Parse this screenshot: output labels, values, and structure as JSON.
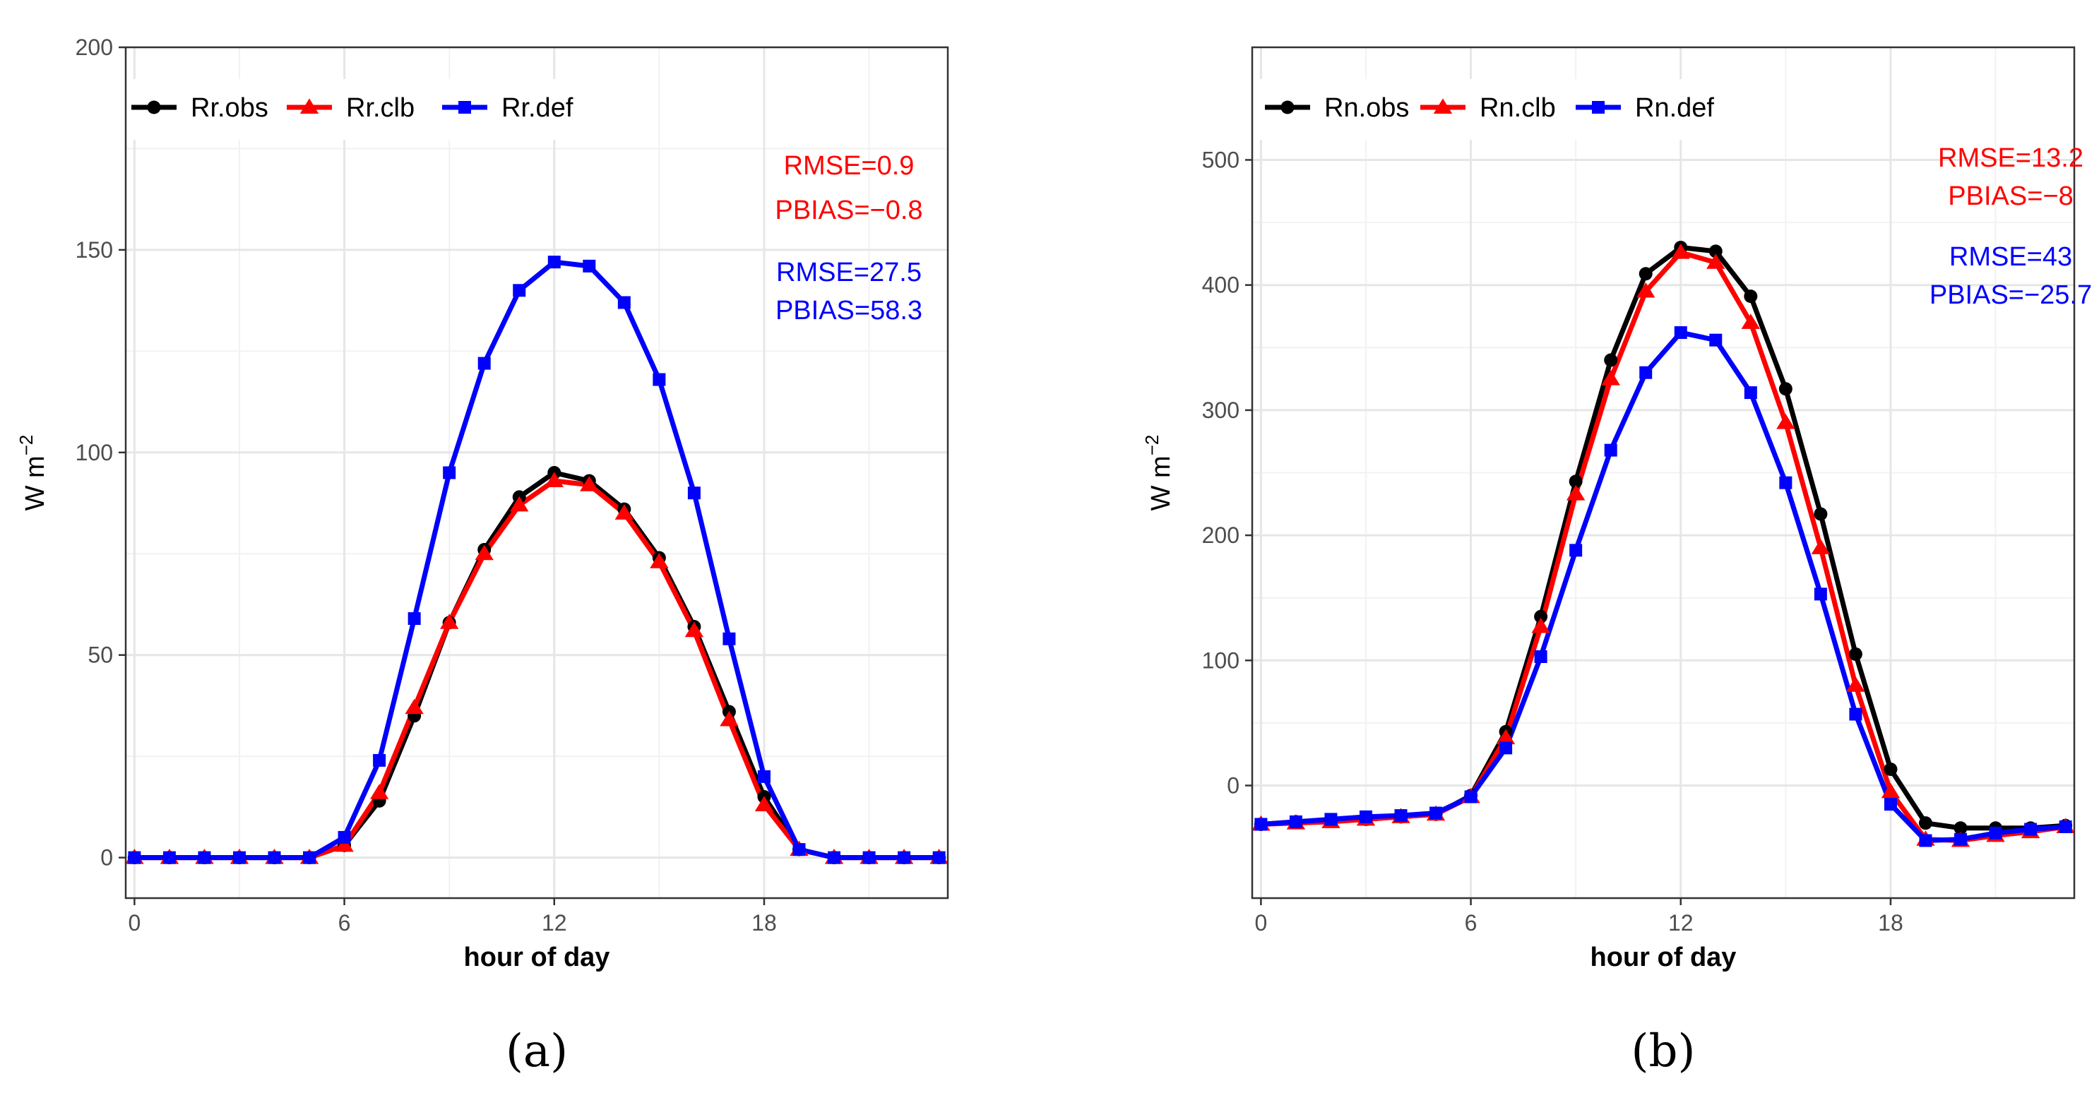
{
  "chart_data": [
    {
      "type": "line",
      "panel_label": "(a)",
      "xlabel": "hour of day",
      "ylabel_base": "W m",
      "ylabel_exp": "−2",
      "x": [
        0,
        1,
        2,
        3,
        4,
        5,
        6,
        7,
        8,
        9,
        10,
        11,
        12,
        13,
        14,
        15,
        16,
        17,
        18,
        19,
        20,
        21,
        22,
        23
      ],
      "xlim": [
        -0.25,
        23.25
      ],
      "xticks": [
        0,
        6,
        12,
        18
      ],
      "ylim": [
        -10,
        200
      ],
      "yticks": [
        0,
        50,
        100,
        150,
        200
      ],
      "legend_position": "top-left",
      "series": [
        {
          "name": "Rr.obs",
          "color": "#000000",
          "marker": "circle",
          "values": [
            0,
            0,
            0,
            0,
            0,
            0,
            3,
            14,
            35,
            58,
            76,
            89,
            95,
            93,
            86,
            74,
            57,
            36,
            15,
            2,
            0,
            0,
            0,
            0
          ]
        },
        {
          "name": "Rr.clb",
          "color": "#ff0000",
          "marker": "triangle",
          "values": [
            0,
            0,
            0,
            0,
            0,
            0,
            3,
            16,
            37,
            58,
            75,
            87,
            93,
            92,
            85,
            73,
            56,
            34,
            13,
            2,
            0,
            0,
            0,
            0
          ]
        },
        {
          "name": "Rr.def",
          "color": "#0000ff",
          "marker": "square",
          "values": [
            0,
            0,
            0,
            0,
            0,
            0,
            5,
            24,
            59,
            95,
            122,
            140,
            147,
            146,
            137,
            118,
            90,
            54,
            20,
            2,
            0,
            0,
            0,
            0
          ]
        }
      ],
      "annotations": [
        {
          "text": "RMSE=0.9",
          "color": "#ff0000"
        },
        {
          "text": "PBIAS=−0.8",
          "color": "#ff0000"
        },
        {
          "text": "RMSE=27.5",
          "color": "#0000ff"
        },
        {
          "text": "PBIAS=58.3",
          "color": "#0000ff"
        }
      ]
    },
    {
      "type": "line",
      "panel_label": "(b)",
      "xlabel": "hour of day",
      "ylabel_base": "W m",
      "ylabel_exp": "−2",
      "x": [
        0,
        1,
        2,
        3,
        4,
        5,
        6,
        7,
        8,
        9,
        10,
        11,
        12,
        13,
        14,
        15,
        16,
        17,
        18,
        19,
        20,
        21,
        22,
        23
      ],
      "xlim": [
        -0.25,
        23.25
      ],
      "xticks": [
        0,
        6,
        12,
        18
      ],
      "ylim": [
        -90,
        590
      ],
      "yticks": [
        0,
        100,
        200,
        300,
        400,
        500
      ],
      "legend_position": "top-left",
      "series": [
        {
          "name": "Rn.obs",
          "color": "#000000",
          "marker": "circle",
          "values": [
            -31,
            -29,
            -28,
            -27,
            -25,
            -23,
            -8,
            43,
            135,
            243,
            340,
            409,
            430,
            427,
            391,
            317,
            217,
            105,
            13,
            -30,
            -34,
            -34,
            -34,
            -32
          ]
        },
        {
          "name": "Rn.clb",
          "color": "#ff0000",
          "marker": "triangle",
          "values": [
            -31,
            -30,
            -29,
            -27,
            -25,
            -23,
            -9,
            38,
            127,
            233,
            325,
            395,
            426,
            418,
            370,
            290,
            190,
            80,
            -5,
            -43,
            -44,
            -40,
            -37,
            -33
          ]
        },
        {
          "name": "Rn.def",
          "color": "#0000ff",
          "marker": "square",
          "values": [
            -31,
            -29,
            -27,
            -25,
            -24,
            -22,
            -9,
            30,
            103,
            188,
            268,
            330,
            362,
            356,
            314,
            242,
            153,
            57,
            -15,
            -44,
            -43,
            -38,
            -35,
            -33
          ]
        }
      ],
      "annotations": [
        {
          "text": "RMSE=13.2",
          "color": "#ff0000"
        },
        {
          "text": "PBIAS=−8",
          "color": "#ff0000"
        },
        {
          "text": "RMSE=43",
          "color": "#0000ff"
        },
        {
          "text": "PBIAS=−25.7",
          "color": "#0000ff"
        }
      ]
    }
  ]
}
